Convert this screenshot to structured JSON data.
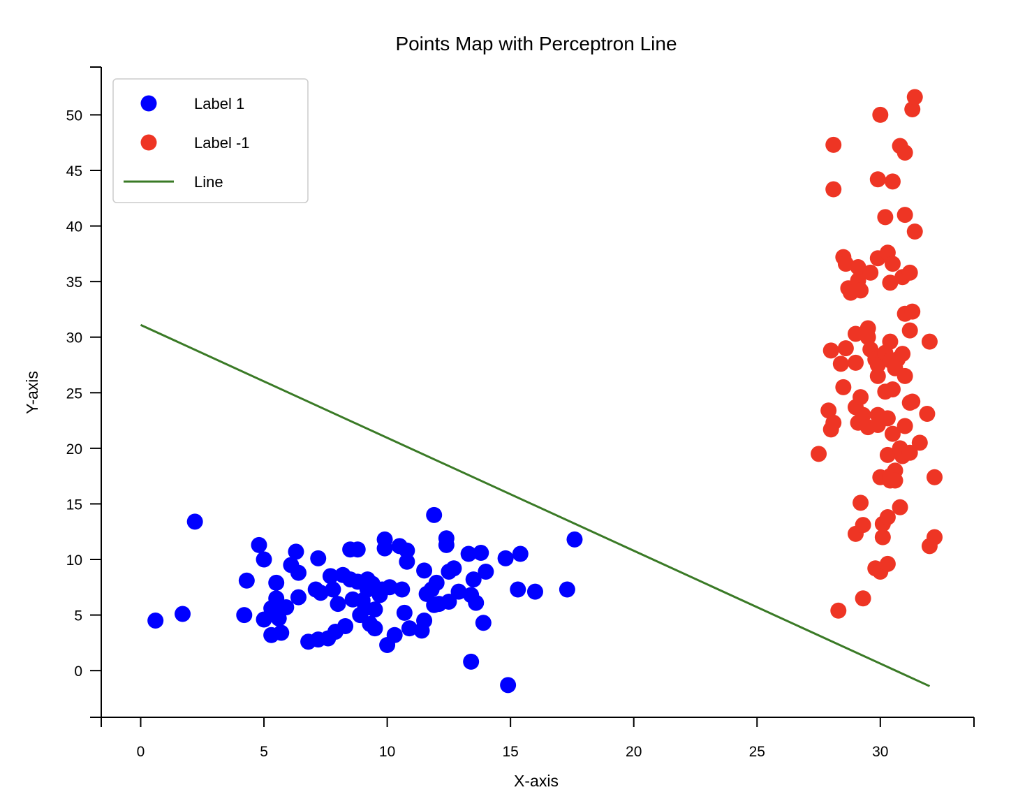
{
  "chart_data": {
    "type": "scatter",
    "title": "Points Map with Perceptron Line",
    "xlabel": "X-axis",
    "ylabel": "Y-axis",
    "xlim": [
      -1.6,
      33.8
    ],
    "ylim": [
      -4.2,
      54.3
    ],
    "xticks": [
      0,
      5,
      10,
      15,
      20,
      25,
      30
    ],
    "yticks": [
      0,
      5,
      10,
      15,
      20,
      25,
      30,
      35,
      40,
      45,
      50
    ],
    "grid": false,
    "legend_position": "top-left",
    "legend": [
      {
        "label": "Label 1",
        "kind": "marker",
        "color": "#0000ff"
      },
      {
        "label": "Label -1",
        "kind": "marker",
        "color": "#ee3524"
      },
      {
        "label": "Line",
        "kind": "line",
        "color": "#3a7a26"
      }
    ],
    "series": [
      {
        "name": "Label 1",
        "color": "#0000ff",
        "points": [
          [
            0.6,
            4.5
          ],
          [
            1.7,
            5.1
          ],
          [
            2.2,
            13.4
          ],
          [
            4.2,
            5.0
          ],
          [
            4.3,
            8.1
          ],
          [
            4.8,
            11.3
          ],
          [
            5.0,
            10.0
          ],
          [
            5.0,
            4.6
          ],
          [
            5.3,
            5.6
          ],
          [
            5.3,
            3.2
          ],
          [
            5.5,
            6.5
          ],
          [
            5.5,
            7.9
          ],
          [
            5.6,
            4.7
          ],
          [
            5.7,
            3.4
          ],
          [
            5.9,
            5.7
          ],
          [
            6.1,
            9.5
          ],
          [
            6.3,
            10.7
          ],
          [
            6.4,
            8.8
          ],
          [
            6.4,
            6.6
          ],
          [
            6.8,
            2.6
          ],
          [
            7.1,
            7.3
          ],
          [
            7.2,
            2.8
          ],
          [
            7.2,
            10.1
          ],
          [
            7.3,
            7.0
          ],
          [
            7.6,
            2.9
          ],
          [
            7.7,
            8.5
          ],
          [
            7.8,
            7.3
          ],
          [
            7.9,
            3.5
          ],
          [
            8.0,
            6.0
          ],
          [
            8.2,
            8.6
          ],
          [
            8.3,
            4.0
          ],
          [
            8.5,
            8.2
          ],
          [
            8.5,
            10.9
          ],
          [
            8.6,
            6.4
          ],
          [
            8.8,
            10.9
          ],
          [
            8.8,
            8.0
          ],
          [
            8.9,
            5.0
          ],
          [
            9.0,
            6.3
          ],
          [
            9.1,
            5.6
          ],
          [
            9.2,
            7.3
          ],
          [
            9.2,
            8.2
          ],
          [
            9.3,
            4.2
          ],
          [
            9.4,
            7.8
          ],
          [
            9.5,
            3.8
          ],
          [
            9.5,
            5.5
          ],
          [
            9.7,
            6.8
          ],
          [
            9.8,
            7.3
          ],
          [
            9.9,
            11.8
          ],
          [
            9.9,
            11.0
          ],
          [
            10.0,
            2.3
          ],
          [
            10.1,
            7.5
          ],
          [
            10.3,
            3.2
          ],
          [
            10.5,
            11.2
          ],
          [
            10.6,
            7.3
          ],
          [
            10.7,
            5.2
          ],
          [
            10.8,
            9.8
          ],
          [
            10.8,
            10.8
          ],
          [
            10.9,
            3.8
          ],
          [
            11.4,
            3.6
          ],
          [
            11.5,
            9.0
          ],
          [
            11.5,
            4.5
          ],
          [
            11.6,
            6.9
          ],
          [
            11.8,
            7.3
          ],
          [
            11.9,
            5.9
          ],
          [
            11.9,
            14.0
          ],
          [
            12.0,
            7.9
          ],
          [
            12.1,
            6.0
          ],
          [
            12.4,
            11.3
          ],
          [
            12.4,
            11.9
          ],
          [
            12.5,
            6.2
          ],
          [
            12.5,
            8.9
          ],
          [
            12.7,
            9.2
          ],
          [
            12.9,
            7.1
          ],
          [
            13.3,
            10.5
          ],
          [
            13.4,
            6.8
          ],
          [
            13.4,
            0.8
          ],
          [
            13.5,
            8.2
          ],
          [
            13.6,
            6.1
          ],
          [
            13.8,
            10.6
          ],
          [
            13.9,
            4.3
          ],
          [
            14.0,
            8.9
          ],
          [
            14.8,
            10.1
          ],
          [
            14.9,
            -1.3
          ],
          [
            15.3,
            7.3
          ],
          [
            15.4,
            10.5
          ],
          [
            16.0,
            7.1
          ],
          [
            17.3,
            7.3
          ],
          [
            17.6,
            11.8
          ]
        ]
      },
      {
        "name": "Label -1",
        "color": "#ee3524",
        "points": [
          [
            27.5,
            19.5
          ],
          [
            27.9,
            23.4
          ],
          [
            28.0,
            21.7
          ],
          [
            28.0,
            28.8
          ],
          [
            28.1,
            22.3
          ],
          [
            28.1,
            43.3
          ],
          [
            28.1,
            47.3
          ],
          [
            28.3,
            5.4
          ],
          [
            28.4,
            27.6
          ],
          [
            28.5,
            25.5
          ],
          [
            28.5,
            37.2
          ],
          [
            28.6,
            29.0
          ],
          [
            28.6,
            36.6
          ],
          [
            28.7,
            34.4
          ],
          [
            28.8,
            34.0
          ],
          [
            29.0,
            23.7
          ],
          [
            29.0,
            12.3
          ],
          [
            29.0,
            30.3
          ],
          [
            29.0,
            27.7
          ],
          [
            29.1,
            22.3
          ],
          [
            29.1,
            35.1
          ],
          [
            29.1,
            36.3
          ],
          [
            29.2,
            34.2
          ],
          [
            29.2,
            15.1
          ],
          [
            29.2,
            24.6
          ],
          [
            29.3,
            13.1
          ],
          [
            29.3,
            6.5
          ],
          [
            29.3,
            23.0
          ],
          [
            29.5,
            21.9
          ],
          [
            29.5,
            30.8
          ],
          [
            29.5,
            30.0
          ],
          [
            29.6,
            35.8
          ],
          [
            29.6,
            28.9
          ],
          [
            29.8,
            9.2
          ],
          [
            29.8,
            28.0
          ],
          [
            29.9,
            44.2
          ],
          [
            29.9,
            23.0
          ],
          [
            29.9,
            22.1
          ],
          [
            29.9,
            37.1
          ],
          [
            29.9,
            26.5
          ],
          [
            29.9,
            27.5
          ],
          [
            30.0,
            50.0
          ],
          [
            30.0,
            8.9
          ],
          [
            30.0,
            17.4
          ],
          [
            30.1,
            12.0
          ],
          [
            30.1,
            13.2
          ],
          [
            30.2,
            25.1
          ],
          [
            30.2,
            40.8
          ],
          [
            30.2,
            28.6
          ],
          [
            30.3,
            9.6
          ],
          [
            30.3,
            37.6
          ],
          [
            30.3,
            22.7
          ],
          [
            30.3,
            13.8
          ],
          [
            30.3,
            19.4
          ],
          [
            30.4,
            34.9
          ],
          [
            30.4,
            27.9
          ],
          [
            30.4,
            17.1
          ],
          [
            30.4,
            17.5
          ],
          [
            30.4,
            29.6
          ],
          [
            30.5,
            36.6
          ],
          [
            30.5,
            21.3
          ],
          [
            30.5,
            25.3
          ],
          [
            30.5,
            44.0
          ],
          [
            30.6,
            18.0
          ],
          [
            30.6,
            17.1
          ],
          [
            30.6,
            27.2
          ],
          [
            30.7,
            28.0
          ],
          [
            30.8,
            47.2
          ],
          [
            30.8,
            20.0
          ],
          [
            30.8,
            14.7
          ],
          [
            30.9,
            28.5
          ],
          [
            30.9,
            19.3
          ],
          [
            30.9,
            35.4
          ],
          [
            31.0,
            46.6
          ],
          [
            31.0,
            22.0
          ],
          [
            31.0,
            41.0
          ],
          [
            31.0,
            26.5
          ],
          [
            31.0,
            32.1
          ],
          [
            31.2,
            19.6
          ],
          [
            31.2,
            30.6
          ],
          [
            31.2,
            24.1
          ],
          [
            31.2,
            35.8
          ],
          [
            31.3,
            32.3
          ],
          [
            31.3,
            50.5
          ],
          [
            31.3,
            24.2
          ],
          [
            31.4,
            51.6
          ],
          [
            31.4,
            39.5
          ],
          [
            31.6,
            20.5
          ],
          [
            31.9,
            23.1
          ],
          [
            32.0,
            11.2
          ],
          [
            32.0,
            29.6
          ],
          [
            32.2,
            12.0
          ],
          [
            32.2,
            17.4
          ]
        ]
      },
      {
        "name": "Line",
        "color": "#3a7a26",
        "type": "line",
        "points": [
          [
            0,
            31.1
          ],
          [
            32.0,
            -1.4
          ]
        ]
      }
    ]
  }
}
